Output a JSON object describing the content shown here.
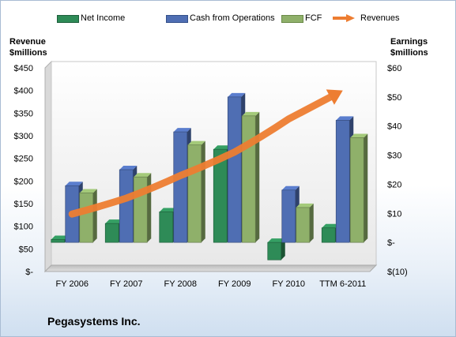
{
  "company": "Pegasystems Inc.",
  "chart_data": {
    "type": "bar",
    "categories": [
      "FY 2006",
      "FY 2007",
      "FY 2008",
      "FY 2009",
      "FY 2010",
      "TTM 6-2011"
    ],
    "series": [
      {
        "name": "Net Income",
        "axis": "right",
        "values": [
          1,
          6.5,
          10.5,
          32,
          -6,
          5
        ],
        "color": "#2e8b57"
      },
      {
        "name": "Cash from Operations",
        "axis": "right",
        "values": [
          19.5,
          25,
          38,
          50,
          18,
          42
        ],
        "color": "#4f6eb3"
      },
      {
        "name": "FCF",
        "axis": "right",
        "values": [
          17,
          22.5,
          33.5,
          43.5,
          12,
          36
        ],
        "color": "#8fb06a"
      },
      {
        "name": "Revenues",
        "axis": "left",
        "type": "line",
        "values": [
          127,
          162,
          212,
          264,
          337,
          400
        ],
        "color": "#ed7d31"
      }
    ],
    "left_axis": {
      "title_line1": "Revenue",
      "title_line2": "$millions",
      "ylim": [
        0,
        450
      ],
      "ticks": [
        0,
        50,
        100,
        150,
        200,
        250,
        300,
        350,
        400,
        450
      ],
      "tick_labels": [
        "$-",
        "$50",
        "$100",
        "$150",
        "$200",
        "$250",
        "$300",
        "$350",
        "$400",
        "$450"
      ]
    },
    "right_axis": {
      "title_line1": "Earnings",
      "title_line2": "$millions",
      "ylim": [
        -10,
        60
      ],
      "ticks": [
        -10,
        0,
        10,
        20,
        30,
        40,
        50,
        60
      ],
      "tick_labels": [
        "$(10)",
        "$-",
        "$10",
        "$20",
        "$30",
        "$40",
        "$50",
        "$60"
      ]
    },
    "grid": false,
    "legend_position": "top"
  }
}
